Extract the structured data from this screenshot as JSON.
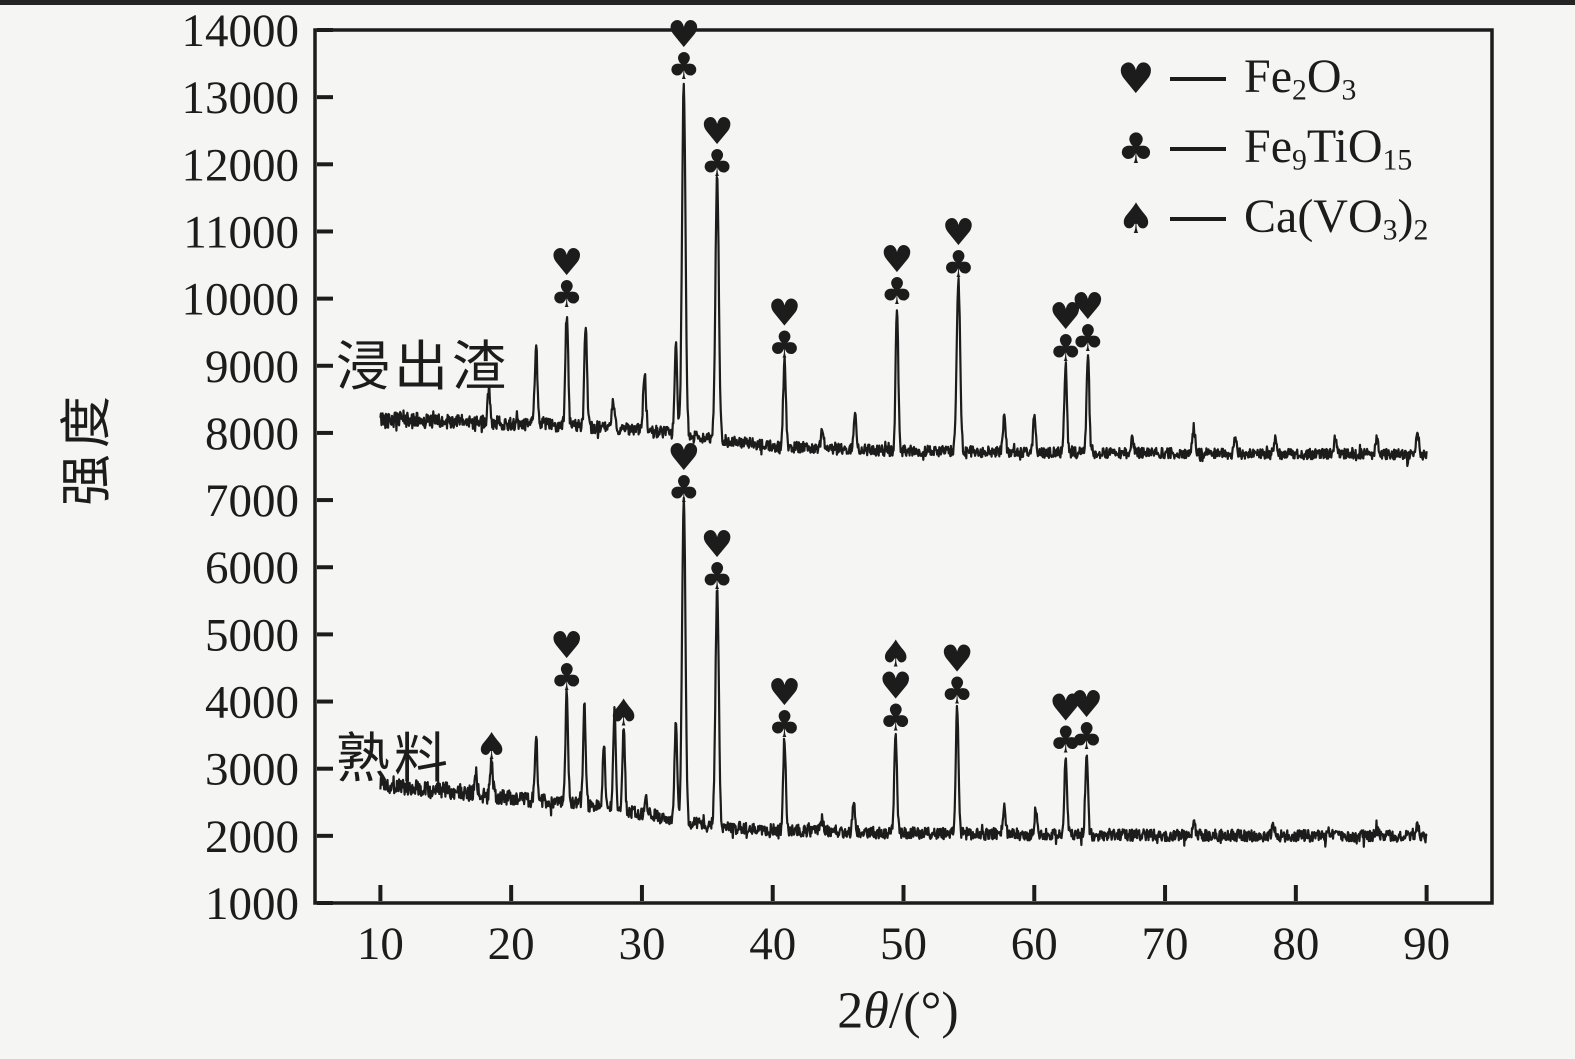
{
  "figure": {
    "background_color": "#f5f5f3",
    "ink_color": "#1c1c1c"
  },
  "y_axis": {
    "title": "强度",
    "tick_labels": [
      "1000",
      "2000",
      "3000",
      "4000",
      "5000",
      "6000",
      "7000",
      "8000",
      "9000",
      "10000",
      "11000",
      "12000",
      "13000",
      "14000"
    ]
  },
  "x_axis": {
    "title_pre": "2",
    "title_theta": "θ",
    "title_post": "/(°)",
    "tick_labels": [
      "10",
      "20",
      "30",
      "40",
      "50",
      "60",
      "70",
      "80",
      "90"
    ]
  },
  "legend": {
    "position": "top-right",
    "items": [
      {
        "marker": "heart",
        "glyph": "♥",
        "formula_plain": "Fe2O3",
        "formula": [
          {
            "t": "Fe"
          },
          {
            "sub": "2"
          },
          {
            "t": "O"
          },
          {
            "sub": "3"
          }
        ]
      },
      {
        "marker": "club",
        "glyph": "♣",
        "formula_plain": "Fe9TiO15",
        "formula": [
          {
            "t": "Fe"
          },
          {
            "sub": "9"
          },
          {
            "t": "TiO"
          },
          {
            "sub": "15"
          }
        ]
      },
      {
        "marker": "spade",
        "glyph": "♠",
        "formula_plain": "Ca(VO3)2",
        "formula": [
          {
            "t": "Ca(VO"
          },
          {
            "sub": "3"
          },
          {
            "t": ")"
          },
          {
            "sub": "2"
          }
        ]
      }
    ]
  },
  "marker_glyphs": {
    "heart": "♥",
    "club": "♣",
    "spade": "♠"
  },
  "chart_data": {
    "type": "line",
    "title": "",
    "xlabel": "2θ/(°)",
    "ylabel": "强度",
    "x_range": [
      5,
      95
    ],
    "y_range": [
      1000,
      14000
    ],
    "x_ticks": [
      10,
      20,
      30,
      40,
      50,
      60,
      70,
      80,
      90
    ],
    "y_ticks": [
      1000,
      2000,
      3000,
      4000,
      5000,
      6000,
      7000,
      8000,
      9000,
      10000,
      11000,
      12000,
      13000,
      14000
    ],
    "grid": false,
    "legend_position": "top-right",
    "series": [
      {
        "key": "residue",
        "label": "浸出渣",
        "seed": 42,
        "noise_amp": 80,
        "baseline": [
          [
            10,
            8200
          ],
          [
            22,
            8130
          ],
          [
            30,
            8050
          ],
          [
            36,
            7900
          ],
          [
            40,
            7800
          ],
          [
            48,
            7740
          ],
          [
            60,
            7710
          ],
          [
            75,
            7690
          ],
          [
            90,
            7680
          ]
        ],
        "peaks": [
          {
            "two_theta": 18.3,
            "intensity": 8650,
            "markers": []
          },
          {
            "two_theta": 21.9,
            "intensity": 9350,
            "markers": []
          },
          {
            "two_theta": 24.25,
            "intensity": 9850,
            "markers": [
              "heart",
              "club"
            ]
          },
          {
            "two_theta": 25.7,
            "intensity": 9650,
            "markers": []
          },
          {
            "two_theta": 27.8,
            "intensity": 8450,
            "markers": []
          },
          {
            "two_theta": 30.2,
            "intensity": 8900,
            "markers": []
          },
          {
            "two_theta": 32.6,
            "intensity": 9300,
            "markers": []
          },
          {
            "two_theta": 33.2,
            "intensity": 13250,
            "markers": [
              "heart",
              "club"
            ]
          },
          {
            "two_theta": 35.75,
            "intensity": 11800,
            "markers": [
              "heart",
              "club"
            ]
          },
          {
            "two_theta": 40.9,
            "intensity": 9100,
            "markers": [
              "heart",
              "club"
            ]
          },
          {
            "two_theta": 43.8,
            "intensity": 8050,
            "markers": []
          },
          {
            "two_theta": 46.3,
            "intensity": 8350,
            "markers": []
          },
          {
            "two_theta": 49.5,
            "intensity": 9900,
            "markers": [
              "heart",
              "club"
            ]
          },
          {
            "two_theta": 54.2,
            "intensity": 10300,
            "markers": [
              "heart",
              "club"
            ]
          },
          {
            "two_theta": 57.7,
            "intensity": 8250,
            "markers": []
          },
          {
            "two_theta": 60.0,
            "intensity": 8250,
            "markers": []
          },
          {
            "two_theta": 62.4,
            "intensity": 9050,
            "markers": [
              "heart",
              "club"
            ]
          },
          {
            "two_theta": 64.1,
            "intensity": 9200,
            "markers": [
              "heart",
              "club"
            ]
          },
          {
            "two_theta": 67.5,
            "intensity": 7950,
            "markers": []
          },
          {
            "two_theta": 72.2,
            "intensity": 8100,
            "markers": []
          },
          {
            "two_theta": 75.4,
            "intensity": 7950,
            "markers": []
          },
          {
            "two_theta": 78.4,
            "intensity": 7900,
            "markers": []
          },
          {
            "two_theta": 83.0,
            "intensity": 7900,
            "markers": []
          },
          {
            "two_theta": 86.2,
            "intensity": 7950,
            "markers": []
          },
          {
            "two_theta": 89.3,
            "intensity": 8000,
            "markers": []
          }
        ]
      },
      {
        "key": "clinker",
        "label": "熟料",
        "seed": 1337,
        "noise_amp": 88,
        "baseline": [
          [
            10,
            2780
          ],
          [
            14,
            2700
          ],
          [
            20,
            2560
          ],
          [
            26,
            2450
          ],
          [
            31,
            2300
          ],
          [
            33,
            2200
          ],
          [
            36,
            2130
          ],
          [
            45,
            2060
          ],
          [
            60,
            2020
          ],
          [
            90,
            1990
          ]
        ],
        "peaks": [
          {
            "two_theta": 17.3,
            "intensity": 2950,
            "markers": []
          },
          {
            "two_theta": 18.5,
            "intensity": 3120,
            "markers": [
              "spade"
            ]
          },
          {
            "two_theta": 21.9,
            "intensity": 3500,
            "markers": []
          },
          {
            "two_theta": 24.25,
            "intensity": 4150,
            "markers": [
              "heart",
              "club"
            ]
          },
          {
            "two_theta": 25.6,
            "intensity": 3900,
            "markers": []
          },
          {
            "two_theta": 27.1,
            "intensity": 3300,
            "markers": []
          },
          {
            "two_theta": 27.9,
            "intensity": 3850,
            "markers": []
          },
          {
            "two_theta": 28.6,
            "intensity": 3620,
            "markers": [
              "spade"
            ]
          },
          {
            "two_theta": 30.3,
            "intensity": 2600,
            "markers": []
          },
          {
            "two_theta": 32.6,
            "intensity": 3750,
            "markers": []
          },
          {
            "two_theta": 33.2,
            "intensity": 6950,
            "markers": [
              "heart",
              "club"
            ]
          },
          {
            "two_theta": 35.75,
            "intensity": 5650,
            "markers": [
              "heart",
              "club"
            ]
          },
          {
            "two_theta": 40.9,
            "intensity": 3450,
            "markers": [
              "heart",
              "club"
            ]
          },
          {
            "two_theta": 43.8,
            "intensity": 2250,
            "markers": []
          },
          {
            "two_theta": 46.2,
            "intensity": 2500,
            "markers": []
          },
          {
            "two_theta": 49.4,
            "intensity": 3550,
            "markers": [
              "spade",
              "heart",
              "club"
            ]
          },
          {
            "two_theta": 54.1,
            "intensity": 3950,
            "markers": [
              "heart",
              "club"
            ]
          },
          {
            "two_theta": 57.7,
            "intensity": 2430,
            "markers": []
          },
          {
            "two_theta": 60.1,
            "intensity": 2380,
            "markers": []
          },
          {
            "two_theta": 62.4,
            "intensity": 3220,
            "markers": [
              "heart",
              "club"
            ]
          },
          {
            "two_theta": 64.0,
            "intensity": 3270,
            "markers": [
              "heart",
              "club"
            ]
          },
          {
            "two_theta": 72.2,
            "intensity": 2260,
            "markers": []
          },
          {
            "two_theta": 78.3,
            "intensity": 2150,
            "markers": []
          },
          {
            "two_theta": 83.0,
            "intensity": 2130,
            "markers": []
          },
          {
            "two_theta": 86.2,
            "intensity": 2150,
            "markers": []
          },
          {
            "two_theta": 89.3,
            "intensity": 2150,
            "markers": []
          }
        ]
      }
    ]
  }
}
